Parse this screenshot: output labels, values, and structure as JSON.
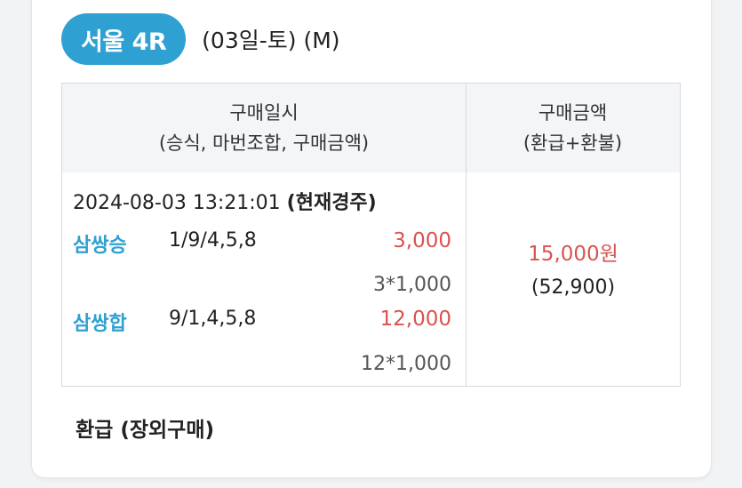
{
  "race": {
    "badge": "서울 4R",
    "info": "(03일-토) (M)"
  },
  "table": {
    "col1_header_line1": "구매일시",
    "col1_header_line2": "(승식, 마번조합, 구매금액)",
    "col2_header_line1": "구매금액",
    "col2_header_line2": "(환급+환불)",
    "datetime": "2024-08-03 13:21:01",
    "status": "(현재경주)",
    "bets": [
      {
        "type": "삼쌍승",
        "combo": "1/9/4,5,8",
        "amount": "3,000",
        "calc": "3*1,000"
      },
      {
        "type": "삼쌍합",
        "combo": "9/1,4,5,8",
        "amount": "12,000",
        "calc": "12*1,000"
      }
    ],
    "total_amount": "15,000원",
    "total_refund": "(52,900)"
  },
  "footer": {
    "refund_note": "환급 (장외구매)"
  },
  "colors": {
    "accent_blue": "#2fa0d2",
    "amount_red": "#d9534f"
  }
}
